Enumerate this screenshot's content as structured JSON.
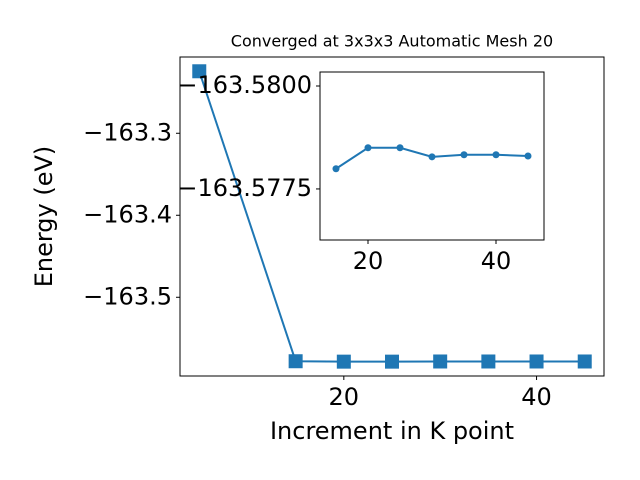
{
  "chart_data": [
    {
      "type": "line",
      "title": "Converged at 3x3x3 Automatic Mesh 20",
      "x_label": "Increment in K point",
      "y_label": "Energy (eV)",
      "x": [
        5,
        15,
        20,
        25,
        30,
        35,
        40,
        45
      ],
      "series": [
        {
          "color": "#1f77b4",
          "marker": "square",
          "values": [
            -163.2244,
            -163.578,
            -163.5785,
            -163.5785,
            -163.5783,
            -163.5783,
            -163.5783,
            -163.5783
          ]
        }
      ],
      "xlim": [
        3,
        47
      ],
      "xticks": [
        20,
        40
      ],
      "ylim": [
        -163.596,
        -163.207
      ],
      "yticks": [
        {
          "value": -163.3,
          "label": "−163.3"
        },
        {
          "value": -163.4,
          "label": "−163.4"
        },
        {
          "value": -163.5,
          "label": "−163.5"
        }
      ]
    },
    {
      "type": "line",
      "x": [
        15,
        20,
        25,
        30,
        35,
        40,
        45
      ],
      "series": [
        {
          "color": "#1f77b4",
          "marker": "circle",
          "values": [
            -163.57799,
            -163.5785,
            -163.5785,
            -163.57828,
            -163.57833,
            -163.57833,
            -163.5783
          ]
        }
      ],
      "xlim": [
        12.5,
        47.5
      ],
      "xticks": [
        20,
        40
      ],
      "ylim": [
        -163.57626,
        -163.58034
      ],
      "yticks": [
        {
          "value": -163.58,
          "label": "−163.5800"
        },
        {
          "value": -163.5775,
          "label": "−163.5775"
        }
      ]
    }
  ]
}
